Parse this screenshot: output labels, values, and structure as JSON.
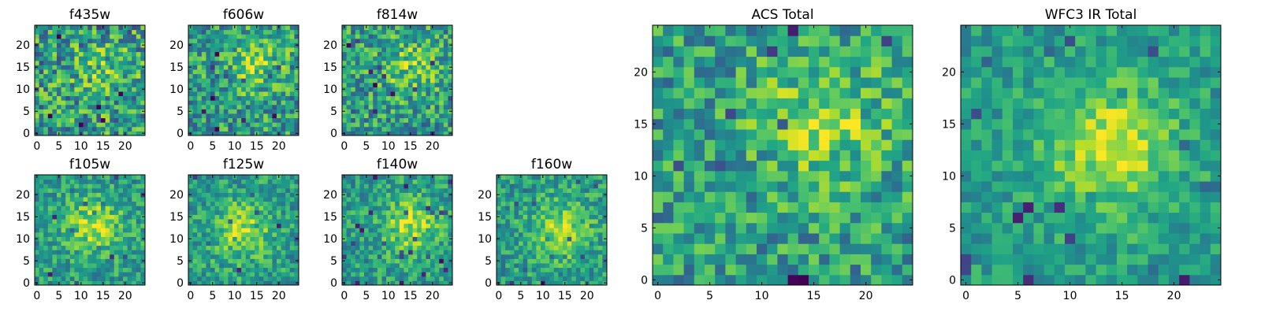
{
  "colormap": "viridis",
  "chart_data": [
    {
      "type": "heatmap",
      "title": "f435w",
      "grid": false,
      "xlim": [
        0,
        24
      ],
      "ylim": [
        0,
        24
      ],
      "xticks": [
        "0",
        "5",
        "10",
        "15",
        "20"
      ],
      "yticks": [
        "0",
        "5",
        "10",
        "15",
        "20"
      ],
      "seed": 11,
      "peak": [
        15,
        14
      ],
      "noise": 0.72,
      "strength": 0.35
    },
    {
      "type": "heatmap",
      "title": "f606w",
      "grid": false,
      "xlim": [
        0,
        24
      ],
      "ylim": [
        0,
        24
      ],
      "xticks": [
        "0",
        "5",
        "10",
        "15",
        "20"
      ],
      "yticks": [
        "0",
        "5",
        "10",
        "15",
        "20"
      ],
      "seed": 23,
      "peak": [
        15,
        16
      ],
      "noise": 0.62,
      "strength": 0.5
    },
    {
      "type": "heatmap",
      "title": "f814w",
      "grid": false,
      "xlim": [
        0,
        24
      ],
      "ylim": [
        0,
        24
      ],
      "xticks": [
        "0",
        "5",
        "10",
        "15",
        "20"
      ],
      "yticks": [
        "0",
        "5",
        "10",
        "15",
        "20"
      ],
      "seed": 37,
      "peak": [
        15,
        15
      ],
      "noise": 0.62,
      "strength": 0.5
    },
    {
      "type": "heatmap",
      "title": "f105w",
      "grid": false,
      "xlim": [
        0,
        24
      ],
      "ylim": [
        0,
        24
      ],
      "xticks": [
        "0",
        "5",
        "10",
        "15",
        "20"
      ],
      "yticks": [
        "0",
        "5",
        "10",
        "15",
        "20"
      ],
      "seed": 41,
      "peak": [
        13,
        13
      ],
      "noise": 0.45,
      "strength": 0.7
    },
    {
      "type": "heatmap",
      "title": "f125w",
      "grid": false,
      "xlim": [
        0,
        24
      ],
      "ylim": [
        0,
        24
      ],
      "xticks": [
        "0",
        "5",
        "10",
        "15",
        "20"
      ],
      "yticks": [
        "0",
        "5",
        "10",
        "15",
        "20"
      ],
      "seed": 53,
      "peak": [
        12,
        12
      ],
      "noise": 0.45,
      "strength": 0.7
    },
    {
      "type": "heatmap",
      "title": "f140w",
      "grid": false,
      "xlim": [
        0,
        24
      ],
      "ylim": [
        0,
        24
      ],
      "xticks": [
        "0",
        "5",
        "10",
        "15",
        "20"
      ],
      "yticks": [
        "0",
        "5",
        "10",
        "15",
        "20"
      ],
      "seed": 67,
      "peak": [
        15,
        13
      ],
      "noise": 0.45,
      "strength": 0.7
    },
    {
      "type": "heatmap",
      "title": "f160w",
      "grid": false,
      "xlim": [
        0,
        24
      ],
      "ylim": [
        0,
        24
      ],
      "xticks": [
        "0",
        "5",
        "10",
        "15",
        "20"
      ],
      "yticks": [
        "0",
        "5",
        "10",
        "15",
        "20"
      ],
      "seed": 79,
      "peak": [
        14,
        12
      ],
      "noise": 0.45,
      "strength": 0.7
    },
    {
      "type": "heatmap",
      "title": "ACS Total",
      "grid": false,
      "xlim": [
        0,
        24
      ],
      "ylim": [
        0,
        24
      ],
      "xticks": [
        "0",
        "5",
        "10",
        "15",
        "20"
      ],
      "yticks": [
        "0",
        "5",
        "10",
        "15",
        "20"
      ],
      "seed": 97,
      "peak": [
        16,
        15
      ],
      "noise": 0.55,
      "strength": 0.6
    },
    {
      "type": "heatmap",
      "title": "WFC3 IR Total",
      "grid": false,
      "xlim": [
        0,
        24
      ],
      "ylim": [
        0,
        24
      ],
      "xticks": [
        "0",
        "5",
        "10",
        "15",
        "20"
      ],
      "yticks": [
        "0",
        "5",
        "10",
        "15",
        "20"
      ],
      "seed": 101,
      "peak": [
        14,
        13
      ],
      "noise": 0.35,
      "strength": 0.8
    }
  ]
}
